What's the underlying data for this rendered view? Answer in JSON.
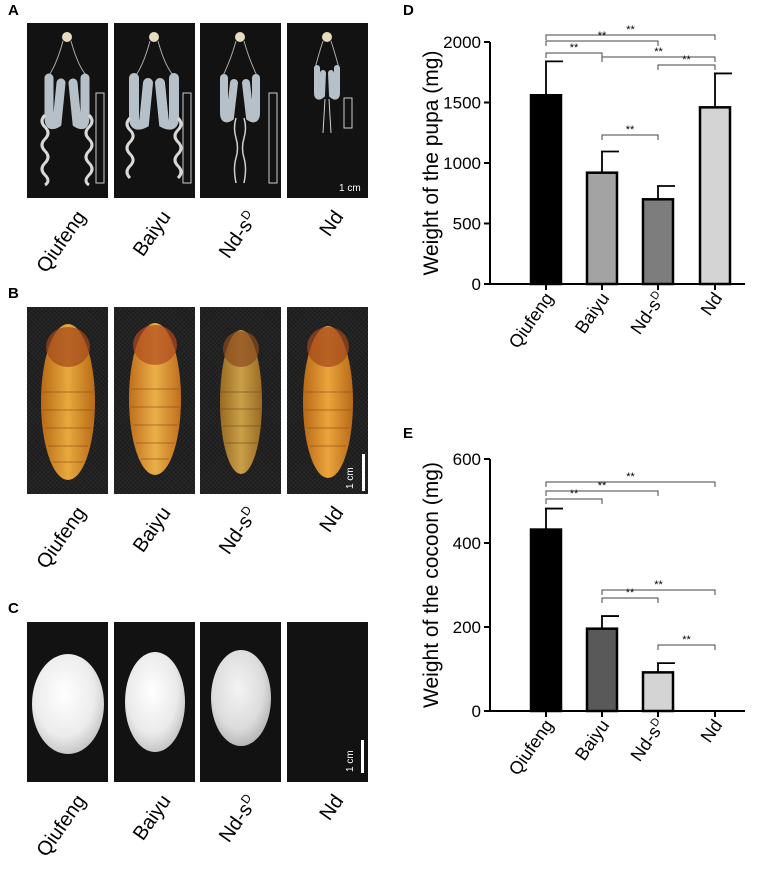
{
  "panels": {
    "A": {
      "letter": "A",
      "scale_bar": "1 cm",
      "samples": [
        "Qiufeng",
        "Baiyu",
        "Nd-s",
        "Nd"
      ],
      "sample_sup": [
        "",
        "",
        "D",
        ""
      ]
    },
    "B": {
      "letter": "B",
      "scale_bar": "1 cm",
      "samples": [
        "Qiufeng",
        "Baiyu",
        "Nd-s",
        "Nd"
      ],
      "sample_sup": [
        "",
        "",
        "D",
        ""
      ]
    },
    "C": {
      "letter": "C",
      "scale_bar": "1 cm",
      "samples": [
        "Qiufeng",
        "Baiyu",
        "Nd-s",
        "Nd"
      ],
      "sample_sup": [
        "",
        "",
        "D",
        ""
      ]
    }
  },
  "chart_data": [
    {
      "panel": "D",
      "type": "bar",
      "ylabel": "Weight of the pupa (mg)",
      "xlabel": "",
      "categories": [
        "Qiufeng",
        "Baiyu",
        "Nd-s",
        "Nd"
      ],
      "category_sup": [
        "",
        "",
        "D",
        ""
      ],
      "values": [
        1560,
        920,
        700,
        1460
      ],
      "errors": [
        280,
        175,
        110,
        280
      ],
      "bar_colors": [
        "#000000",
        "#a3a3a3",
        "#7d7d7d",
        "#d4d4d4"
      ],
      "ylim": [
        0,
        2000
      ],
      "yticks": [
        0,
        500,
        1000,
        1500,
        2000
      ],
      "grid": false,
      "significance": [
        {
          "from": 0,
          "to": 3,
          "label": "**"
        },
        {
          "from": 0,
          "to": 2,
          "label": "**"
        },
        {
          "from": 0,
          "to": 1,
          "label": "**"
        },
        {
          "from": 1,
          "to": 3,
          "label": "**"
        },
        {
          "from": 2,
          "to": 3,
          "label": "**"
        },
        {
          "from": 1,
          "to": 2,
          "label": "**"
        }
      ]
    },
    {
      "panel": "E",
      "type": "bar",
      "ylabel": "Weight of the cocoon (mg)",
      "xlabel": "",
      "categories": [
        "Qiufeng",
        "Baiyu",
        "Nd-s",
        "Nd"
      ],
      "category_sup": [
        "",
        "",
        "D",
        ""
      ],
      "values": [
        432,
        196,
        92,
        0
      ],
      "errors": [
        50,
        30,
        22,
        0
      ],
      "bar_colors": [
        "#000000",
        "#595959",
        "#d4d4d4",
        "#ffffff"
      ],
      "ylim": [
        0,
        600
      ],
      "yticks": [
        0,
        200,
        400,
        600
      ],
      "grid": false,
      "significance": [
        {
          "from": 0,
          "to": 3,
          "label": "**"
        },
        {
          "from": 0,
          "to": 2,
          "label": "**"
        },
        {
          "from": 0,
          "to": 1,
          "label": "**"
        },
        {
          "from": 1,
          "to": 3,
          "label": "**"
        },
        {
          "from": 1,
          "to": 2,
          "label": "**"
        },
        {
          "from": 2,
          "to": 3,
          "label": "**"
        }
      ]
    }
  ]
}
